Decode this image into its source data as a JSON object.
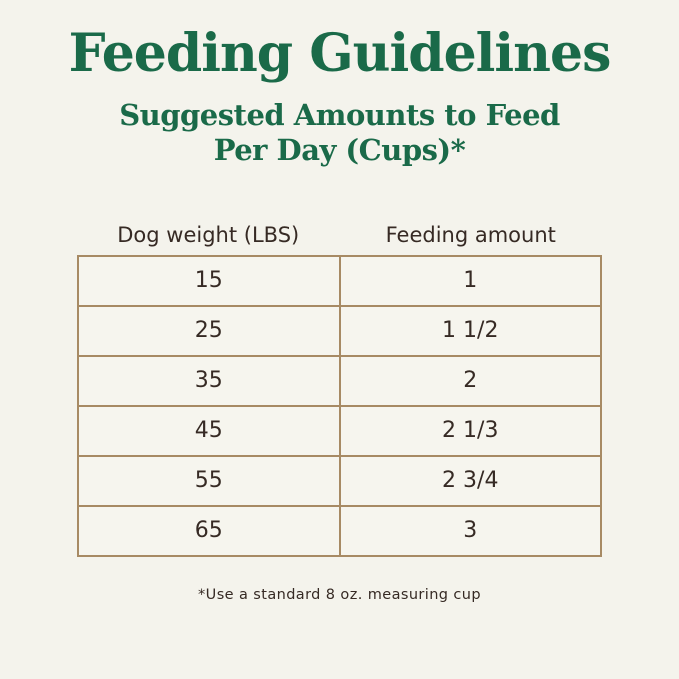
{
  "page": {
    "title": "Feeding Guidelines",
    "subtitle_line1": "Suggested Amounts to Feed",
    "subtitle_line2": "Per Day (Cups)*",
    "footnote": "*Use a standard 8 oz. measuring cup"
  },
  "table": {
    "headers": {
      "weight": "Dog weight (LBS)",
      "amount": "Feeding amount"
    },
    "rows": [
      {
        "weight": "15",
        "amount": "1"
      },
      {
        "weight": "25",
        "amount": "1 1/2"
      },
      {
        "weight": "35",
        "amount": "2"
      },
      {
        "weight": "45",
        "amount": "2 1/3"
      },
      {
        "weight": "55",
        "amount": "2 3/4"
      },
      {
        "weight": "65",
        "amount": "3"
      }
    ]
  },
  "colors": {
    "background": "#f4f3ec",
    "heading_green": "#1a6a49",
    "table_border": "#a78a64",
    "text_dark": "#362a24"
  },
  "chart_data": {
    "type": "table",
    "title": "Feeding Guidelines",
    "subtitle": "Suggested Amounts to Feed Per Day (Cups)*",
    "columns": [
      "Dog weight (LBS)",
      "Feeding amount"
    ],
    "rows": [
      [
        "15",
        "1"
      ],
      [
        "25",
        "1 1/2"
      ],
      [
        "35",
        "2"
      ],
      [
        "45",
        "2 1/3"
      ],
      [
        "55",
        "2 3/4"
      ],
      [
        "65",
        "3"
      ]
    ],
    "footnote": "*Use a standard 8 oz. measuring cup",
    "layout_hints": {
      "grid": "full-borders",
      "column_alignment": "center",
      "units": "cups per day"
    }
  }
}
